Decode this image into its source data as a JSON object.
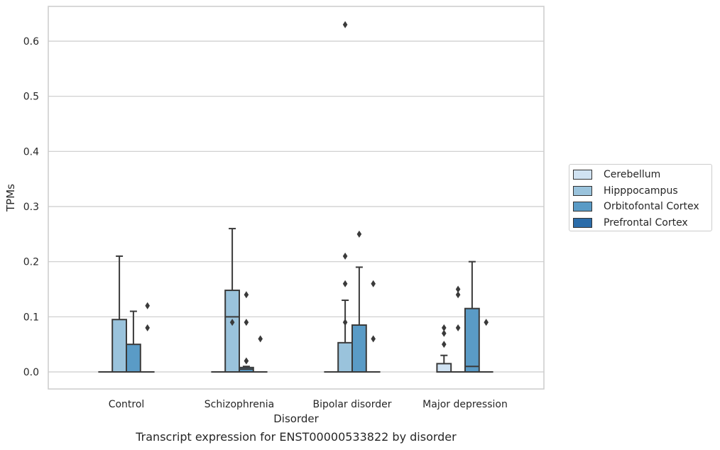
{
  "chart_data": {
    "type": "box",
    "caption": "Transcript expression for ENST00000533822 by disorder",
    "xlabel": "Disorder",
    "ylabel": "TPMs",
    "ylim": [
      -0.03,
      0.66
    ],
    "yticks": [
      0.0,
      0.1,
      0.2,
      0.3,
      0.4,
      0.5,
      0.6
    ],
    "ytick_labels": [
      "0.0",
      "0.1",
      "0.2",
      "0.3",
      "0.4",
      "0.5",
      "0.6"
    ],
    "grid": true,
    "legend_position": "outside right",
    "categories": [
      "Control",
      "Schizophrenia",
      "Bipolar disorder",
      "Major depression"
    ],
    "series": [
      {
        "name": "Cerebellum",
        "color": "#d0e2f2",
        "boxes": [
          {
            "q1": 0,
            "median": 0,
            "q3": 0,
            "whisker_low": 0,
            "whisker_high": 0,
            "outliers": []
          },
          {
            "q1": 0,
            "median": 0,
            "q3": 0,
            "whisker_low": 0,
            "whisker_high": 0,
            "outliers": []
          },
          {
            "q1": 0,
            "median": 0,
            "q3": 0,
            "whisker_low": 0,
            "whisker_high": 0,
            "outliers": []
          },
          {
            "q1": 0,
            "median": 0,
            "q3": 0.015,
            "whisker_low": 0,
            "whisker_high": 0.03,
            "outliers": [
              0.05,
              0.07,
              0.08
            ]
          }
        ]
      },
      {
        "name": "Hipppocampus",
        "color": "#9ac3dc",
        "boxes": [
          {
            "q1": 0,
            "median": 0,
            "q3": 0.095,
            "whisker_low": 0,
            "whisker_high": 0.21,
            "outliers": []
          },
          {
            "q1": 0,
            "median": 0.1,
            "q3": 0.148,
            "whisker_low": 0,
            "whisker_high": 0.26,
            "outliers": [
              0.09
            ]
          },
          {
            "q1": 0,
            "median": 0,
            "q3": 0.053,
            "whisker_low": 0,
            "whisker_high": 0.13,
            "outliers": [
              0.09,
              0.16,
              0.21,
              0.63
            ]
          },
          {
            "q1": 0,
            "median": 0,
            "q3": 0,
            "whisker_low": 0,
            "whisker_high": 0,
            "outliers": [
              0.08,
              0.14,
              0.15
            ]
          }
        ]
      },
      {
        "name": "Orbitofontal Cortex",
        "color": "#5a9bc6",
        "boxes": [
          {
            "q1": 0,
            "median": 0,
            "q3": 0.05,
            "whisker_low": 0,
            "whisker_high": 0.11,
            "outliers": []
          },
          {
            "q1": 0,
            "median": 0.005,
            "q3": 0.008,
            "whisker_low": 0,
            "whisker_high": 0.01,
            "outliers": [
              0.02,
              0.09,
              0.14
            ]
          },
          {
            "q1": 0,
            "median": 0,
            "q3": 0.085,
            "whisker_low": 0,
            "whisker_high": 0.19,
            "outliers": [
              0.25
            ]
          },
          {
            "q1": 0,
            "median": 0.01,
            "q3": 0.115,
            "whisker_low": 0,
            "whisker_high": 0.2,
            "outliers": []
          }
        ]
      },
      {
        "name": "Prefrontal Cortex",
        "color": "#2b6ca9",
        "boxes": [
          {
            "q1": 0,
            "median": 0,
            "q3": 0,
            "whisker_low": 0,
            "whisker_high": 0,
            "outliers": [
              0.08,
              0.12
            ]
          },
          {
            "q1": 0,
            "median": 0,
            "q3": 0,
            "whisker_low": 0,
            "whisker_high": 0,
            "outliers": [
              0.06
            ]
          },
          {
            "q1": 0,
            "median": 0,
            "q3": 0,
            "whisker_low": 0,
            "whisker_high": 0,
            "outliers": [
              0.06,
              0.16
            ]
          },
          {
            "q1": 0,
            "median": 0,
            "q3": 0,
            "whisker_low": 0,
            "whisker_high": 0,
            "outliers": [
              0.09
            ]
          }
        ]
      }
    ]
  }
}
